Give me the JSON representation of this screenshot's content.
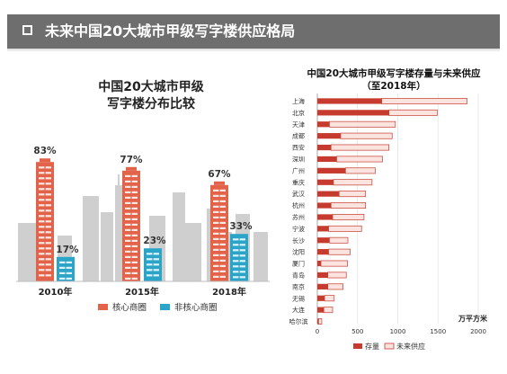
{
  "header": {
    "title": "未来中国20大城市甲级写字楼供应格局"
  },
  "colors": {
    "core": "#e2634a",
    "noncore": "#2aa5c8",
    "stock": "#c63b2e",
    "future_fill": "#fbe3df",
    "future_border": "#c63b2e",
    "skyline": "#cfcfcf"
  },
  "chart_data": [
    {
      "type": "bar",
      "title_lines": [
        "中国20大城市甲级",
        "写字楼分布比较"
      ],
      "categories": [
        "2010年",
        "2015年",
        "2018年"
      ],
      "series": [
        {
          "name": "核心商圈",
          "values": [
            83,
            77,
            67
          ],
          "labels": [
            "83%",
            "77%",
            "67%"
          ]
        },
        {
          "name": "非核心商圈",
          "values": [
            17,
            23,
            33
          ],
          "labels": [
            "17%",
            "23%",
            "33%"
          ]
        }
      ],
      "ylim": [
        0,
        100
      ],
      "legend": "bottom"
    },
    {
      "type": "bar",
      "orientation": "horizontal",
      "stacked": true,
      "title_lines": [
        "中国20大城市甲级写字楼存量与未来供应",
        "（至2018年）"
      ],
      "categories": [
        "上海",
        "北京",
        "天津",
        "成都",
        "西安",
        "深圳",
        "广州",
        "重庆",
        "武汉",
        "杭州",
        "苏州",
        "宁波",
        "长沙",
        "沈阳",
        "厦门",
        "青岛",
        "南京",
        "无锡",
        "大连",
        "哈尔滨"
      ],
      "series": [
        {
          "name": "存量",
          "values": [
            800,
            890,
            150,
            290,
            170,
            240,
            350,
            200,
            270,
            170,
            190,
            140,
            150,
            140,
            45,
            130,
            130,
            90,
            80,
            15
          ]
        },
        {
          "name": "未来供应",
          "values": [
            1060,
            600,
            820,
            640,
            720,
            570,
            370,
            480,
            330,
            430,
            390,
            410,
            230,
            270,
            330,
            230,
            190,
            120,
            110,
            40
          ]
        }
      ],
      "xticks": [
        "0",
        "500",
        "1000",
        "1500",
        "2000"
      ],
      "xlim": [
        0,
        2000
      ],
      "unit": "万平方米",
      "legend": "bottom"
    }
  ]
}
